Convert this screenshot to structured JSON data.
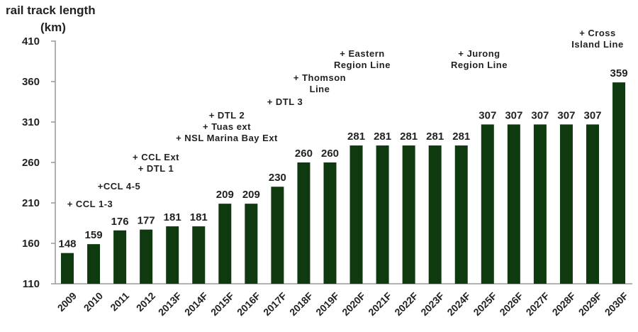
{
  "chart_data": {
    "type": "bar",
    "title_line1": "rail track length",
    "title_line2": "(km)",
    "xlabel": "",
    "ylabel": "rail track length (km)",
    "ylim": [
      110,
      410
    ],
    "yticks": [
      110,
      160,
      210,
      260,
      310,
      360,
      410
    ],
    "grid": false,
    "bar_color": "#0f3a0f",
    "categories": [
      "2009",
      "2010",
      "2011",
      "2012",
      "2013F",
      "2014F",
      "2015F",
      "2016F",
      "2017F",
      "2018F",
      "2019F",
      "2020F",
      "2021F",
      "2022F",
      "2023F",
      "2024F",
      "2025F",
      "2026F",
      "2027F",
      "2028F",
      "2029F",
      "2030F"
    ],
    "values": [
      148,
      159,
      176,
      177,
      181,
      181,
      209,
      209,
      230,
      260,
      260,
      281,
      281,
      281,
      281,
      281,
      307,
      307,
      307,
      307,
      307,
      359
    ],
    "annotations": [
      {
        "category": "2010",
        "lines": [
          "+ CCL 1-3"
        ]
      },
      {
        "category": "2011",
        "lines": [
          "+CCL 4-5"
        ]
      },
      {
        "category": "2012",
        "lines": [
          "+ CCL Ext",
          "+ DTL 1"
        ]
      },
      {
        "category": "2015F",
        "lines": [
          "+ DTL 2",
          "+ Tuas ext",
          "+ NSL Marina Bay Ext"
        ]
      },
      {
        "category": "2017F",
        "lines": [
          "+ DTL 3"
        ]
      },
      {
        "category": "2018F",
        "lines": [
          "+ Thomson",
          "Line"
        ]
      },
      {
        "category": "2020F",
        "lines": [
          "+ Eastern",
          "Region Line"
        ]
      },
      {
        "category": "2025F",
        "lines": [
          "+ Jurong",
          "Region Line"
        ]
      },
      {
        "category": "2030F",
        "lines": [
          "+ Cross",
          "Island Line"
        ]
      }
    ]
  }
}
